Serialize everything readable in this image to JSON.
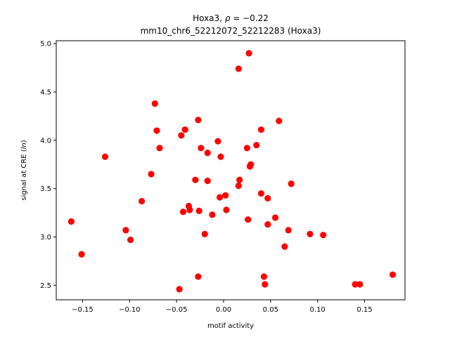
{
  "chart_data": {
    "type": "scatter",
    "title_gene": "Hoxa3",
    "title_rho_label": "ρ",
    "title_rho_value": "−0.22",
    "subtitle": "mm10_chr6_52212072_52212283 (Hoxa3)",
    "xlabel": "motif activity",
    "ylabel_prefix": "signal at CRE (",
    "ylabel_italic": "ln",
    "ylabel_suffix": ")",
    "xlim": [
      -0.178,
      0.193
    ],
    "ylim": [
      2.35,
      5.03
    ],
    "xticks": [
      -0.15,
      -0.1,
      -0.05,
      0.0,
      0.05,
      0.1,
      0.15
    ],
    "xtick_labels": [
      "−0.15",
      "−0.10",
      "−0.05",
      "0.00",
      "0.05",
      "0.10",
      "0.15"
    ],
    "yticks": [
      2.5,
      3.0,
      3.5,
      4.0,
      4.5,
      5.0
    ],
    "ytick_labels": [
      "2.5",
      "3.0",
      "3.5",
      "4.0",
      "4.5",
      "5.0"
    ],
    "marker_color": "#ff0000",
    "grid": false,
    "points": [
      {
        "x": -0.162,
        "y": 3.16
      },
      {
        "x": -0.151,
        "y": 2.82
      },
      {
        "x": -0.126,
        "y": 3.83
      },
      {
        "x": -0.104,
        "y": 3.07
      },
      {
        "x": -0.099,
        "y": 2.97
      },
      {
        "x": -0.087,
        "y": 3.37
      },
      {
        "x": -0.077,
        "y": 3.65
      },
      {
        "x": -0.073,
        "y": 4.38
      },
      {
        "x": -0.071,
        "y": 4.1
      },
      {
        "x": -0.068,
        "y": 3.92
      },
      {
        "x": -0.047,
        "y": 2.46
      },
      {
        "x": -0.045,
        "y": 4.05
      },
      {
        "x": -0.041,
        "y": 4.11
      },
      {
        "x": -0.043,
        "y": 3.26
      },
      {
        "x": -0.037,
        "y": 3.32
      },
      {
        "x": -0.036,
        "y": 3.28
      },
      {
        "x": -0.03,
        "y": 3.59
      },
      {
        "x": -0.027,
        "y": 4.21
      },
      {
        "x": -0.027,
        "y": 2.59
      },
      {
        "x": -0.026,
        "y": 3.27
      },
      {
        "x": -0.024,
        "y": 3.92
      },
      {
        "x": -0.02,
        "y": 3.03
      },
      {
        "x": -0.017,
        "y": 3.87
      },
      {
        "x": -0.017,
        "y": 3.58
      },
      {
        "x": -0.012,
        "y": 3.23
      },
      {
        "x": -0.006,
        "y": 3.99
      },
      {
        "x": -0.004,
        "y": 3.41
      },
      {
        "x": -0.003,
        "y": 3.83
      },
      {
        "x": 0.002,
        "y": 3.43
      },
      {
        "x": 0.003,
        "y": 3.28
      },
      {
        "x": 0.016,
        "y": 4.74
      },
      {
        "x": 0.016,
        "y": 3.53
      },
      {
        "x": 0.017,
        "y": 3.59
      },
      {
        "x": 0.025,
        "y": 3.92
      },
      {
        "x": 0.027,
        "y": 4.9
      },
      {
        "x": 0.026,
        "y": 3.18
      },
      {
        "x": 0.028,
        "y": 3.73
      },
      {
        "x": 0.029,
        "y": 3.75
      },
      {
        "x": 0.035,
        "y": 3.95
      },
      {
        "x": 0.04,
        "y": 4.11
      },
      {
        "x": 0.04,
        "y": 3.45
      },
      {
        "x": 0.043,
        "y": 2.59
      },
      {
        "x": 0.044,
        "y": 2.51
      },
      {
        "x": 0.047,
        "y": 3.4
      },
      {
        "x": 0.047,
        "y": 3.13
      },
      {
        "x": 0.055,
        "y": 3.2
      },
      {
        "x": 0.059,
        "y": 4.2
      },
      {
        "x": 0.065,
        "y": 2.9
      },
      {
        "x": 0.069,
        "y": 3.07
      },
      {
        "x": 0.072,
        "y": 3.55
      },
      {
        "x": 0.092,
        "y": 3.03
      },
      {
        "x": 0.106,
        "y": 3.02
      },
      {
        "x": 0.14,
        "y": 2.51
      },
      {
        "x": 0.145,
        "y": 2.51
      },
      {
        "x": 0.18,
        "y": 2.61
      }
    ]
  }
}
